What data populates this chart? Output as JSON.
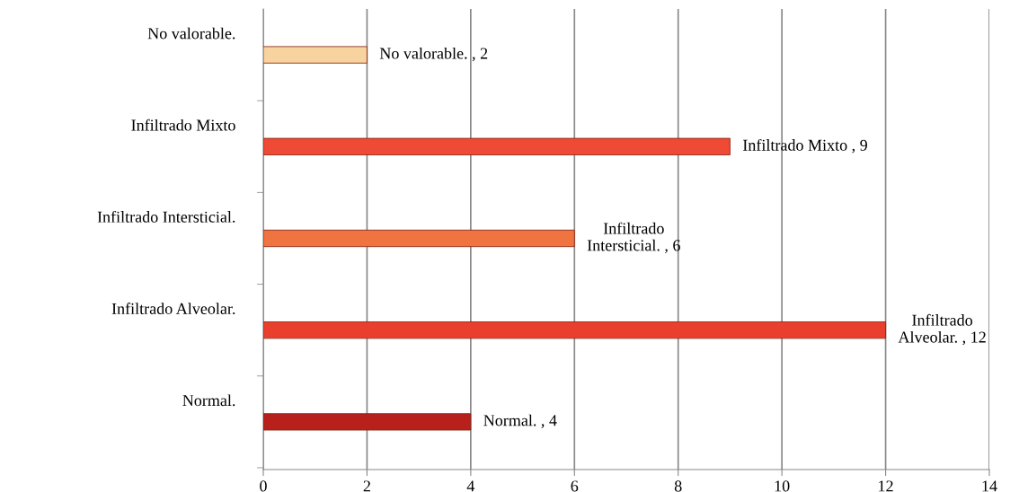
{
  "chart_data": {
    "type": "bar",
    "orientation": "horizontal",
    "categories": [
      "No valorable.",
      "Infiltrado Mixto",
      "Infiltrado Intersticial.",
      "Infiltrado Alveolar.",
      "Normal."
    ],
    "values": [
      2,
      9,
      6,
      12,
      4
    ],
    "colors": [
      "#f7d3a0",
      "#ee4a35",
      "#ef7440",
      "#e8402c",
      "#b8201c"
    ],
    "value_labels": [
      "No valorable. , 2",
      "Infiltrado Mixto , 9",
      "Infiltrado\nIntersticial. , 6",
      "Infiltrado\nAlveolar. , 12",
      "Normal. , 4"
    ],
    "xlim": [
      0,
      14
    ],
    "xticks": [
      0,
      2,
      4,
      6,
      8,
      10,
      12,
      14
    ],
    "grid": "x"
  }
}
